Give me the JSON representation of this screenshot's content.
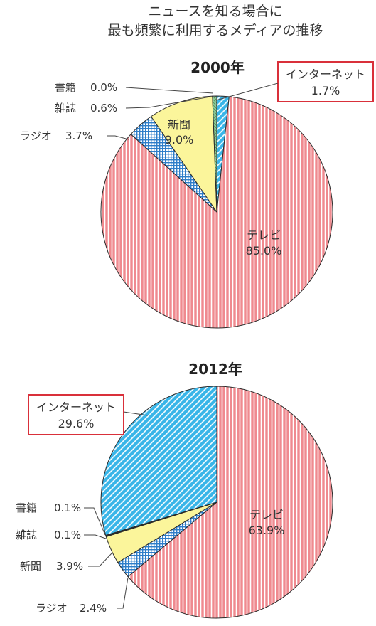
{
  "title": {
    "line1": "ニュースを知る場合に",
    "line2": "最も頻繁に利用するメディアの推移"
  },
  "colors": {
    "tv": "#ef8a8f",
    "internet": "#38b5e8",
    "newspaper": "#fbf59b",
    "radio": "#2f7ec9",
    "magazine": "#8dc99a",
    "book": "#3f7a45",
    "highlight": "#d9303a"
  },
  "chart_data": [
    {
      "type": "pie",
      "title": "2000年",
      "categories": [
        "インターネット",
        "テレビ",
        "ラジオ",
        "新聞",
        "雑誌",
        "書籍"
      ],
      "values": [
        1.7,
        85.0,
        3.7,
        9.0,
        0.6,
        0.0
      ],
      "labels": [
        "1.7%",
        "85.0%",
        "3.7%",
        "9.0%",
        "0.6%",
        "0.0%"
      ]
    },
    {
      "type": "pie",
      "title": "2012年",
      "categories": [
        "テレビ",
        "ラジオ",
        "新聞",
        "雑誌",
        "書籍",
        "インターネット"
      ],
      "values": [
        63.9,
        2.4,
        3.9,
        0.1,
        0.1,
        29.6
      ],
      "labels": [
        "63.9%",
        "2.4%",
        "3.9%",
        "0.1%",
        "0.1%",
        "29.6%"
      ]
    }
  ]
}
